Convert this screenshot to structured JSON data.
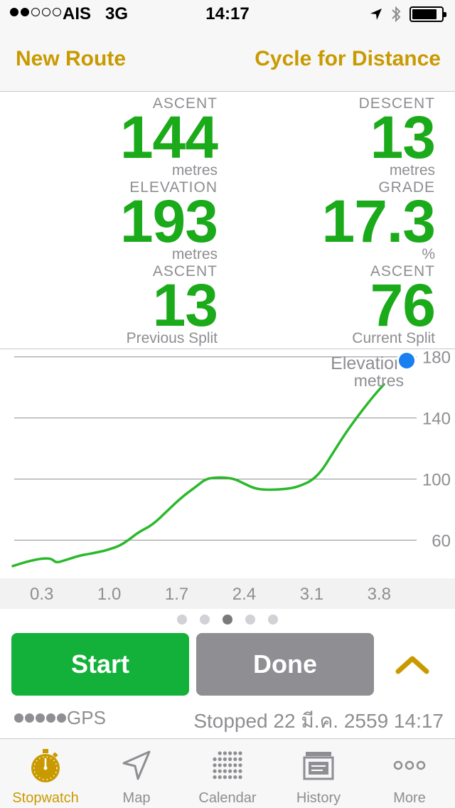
{
  "status_bar": {
    "signal_filled": 2,
    "signal_total": 5,
    "carrier": "AIS",
    "network": "3G",
    "time": "14:17",
    "icons": [
      "location-arrow-icon",
      "bluetooth-icon",
      "battery-icon"
    ],
    "battery_level": 0.85
  },
  "nav": {
    "left_label": "New Route",
    "right_label": "Cycle for Distance"
  },
  "stats": {
    "ascent": {
      "label": "ASCENT",
      "value": "144",
      "unit": "metres"
    },
    "descent": {
      "label": "DESCENT",
      "value": "13",
      "unit": "metres"
    },
    "elevation": {
      "label": "ELEVATION",
      "value": "193",
      "unit": "metres"
    },
    "grade": {
      "label": "GRADE",
      "value": "17.3",
      "unit": "%"
    },
    "prev_split": {
      "label": "ASCENT",
      "value": "13",
      "unit": "Previous Split"
    },
    "curr_split": {
      "label": "ASCENT",
      "value": "76",
      "unit": "Current Split"
    }
  },
  "chart_data": {
    "type": "line",
    "title": "",
    "legend": [
      "Elevation",
      "metres"
    ],
    "x_ticks": [
      "0.3",
      "1.0",
      "1.7",
      "2.4",
      "3.1",
      "3.8"
    ],
    "y_ticks": [
      "180",
      "140",
      "100",
      "60"
    ],
    "xlim": [
      -0.0,
      4.1
    ],
    "ylim": [
      35,
      185
    ],
    "grid": true,
    "color": "#2bb82b",
    "marker_color": "#1a7ff0",
    "series": [
      {
        "x": [
          0.0,
          0.15,
          0.3,
          0.4,
          0.45,
          0.55,
          0.7,
          0.8,
          0.95,
          1.0,
          1.1,
          1.2,
          1.3,
          1.45,
          1.6,
          1.75,
          1.9,
          2.0,
          2.1,
          2.2,
          2.3,
          2.4,
          2.5,
          2.6,
          2.75,
          2.9,
          3.0,
          3.1,
          3.2,
          3.3,
          3.45,
          3.6,
          3.75,
          3.85
        ],
        "y": [
          43,
          46,
          48,
          48,
          45,
          47,
          50,
          51,
          53,
          54,
          56,
          60,
          65,
          70,
          79,
          88,
          95,
          100,
          101,
          101,
          100,
          97,
          94,
          93,
          93,
          94,
          96,
          99,
          105,
          115,
          130,
          143,
          155,
          162
        ]
      }
    ]
  },
  "pager": {
    "count": 5,
    "active_index": 2
  },
  "controls": {
    "start_label": "Start",
    "done_label": "Done"
  },
  "gps": {
    "label": "GPS",
    "status": "Stopped 22 มี.ค. 2559 14:17"
  },
  "tabs": [
    {
      "label": "Stopwatch",
      "icon": "stopwatch-icon",
      "active": true
    },
    {
      "label": "Map",
      "icon": "map-arrow-icon",
      "active": false
    },
    {
      "label": "Calendar",
      "icon": "calendar-grid-icon",
      "active": false
    },
    {
      "label": "History",
      "icon": "history-icon",
      "active": false
    },
    {
      "label": "More",
      "icon": "more-icon",
      "active": false
    }
  ],
  "colors": {
    "accent": "#c99a00",
    "value_green": "#1aaa1a",
    "start_green": "#13b13a",
    "done_gray": "#8e8e93"
  }
}
